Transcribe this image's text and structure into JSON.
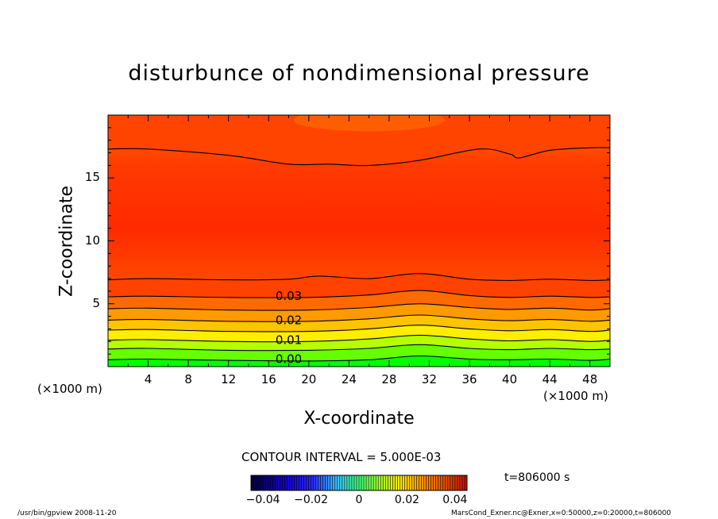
{
  "chart_data": {
    "type": "contour",
    "title": "disturbunce of nondimensional pressure",
    "xlabel": "X-coordinate",
    "ylabel": "Z-coordinate",
    "x_unit_left": "(×1000 m)",
    "x_unit_right": "(×1000 m)",
    "xlim": [
      0,
      50
    ],
    "ylim": [
      0,
      20
    ],
    "x_ticks": [
      4,
      8,
      12,
      16,
      20,
      24,
      28,
      32,
      36,
      40,
      44,
      48
    ],
    "x_tick_labels": [
      "4",
      "8",
      "12",
      "16",
      "20",
      "24",
      "28",
      "32",
      "36",
      "40",
      "44",
      "48"
    ],
    "y_ticks": [
      5,
      10,
      15
    ],
    "y_tick_labels": [
      "5",
      "10",
      "15"
    ],
    "contour_interval_text": "CONTOUR INTERVAL = 5.000E-03",
    "contour_level_labels": [
      {
        "text": "0.03",
        "value": 0.03,
        "z": 5.6
      },
      {
        "text": "0.02",
        "value": 0.02,
        "z": 3.7
      },
      {
        "text": "0.01",
        "value": 0.01,
        "z": 2.1
      },
      {
        "text": "0.00",
        "value": 0.0,
        "z": 0.6
      }
    ],
    "colorbar": {
      "range": [
        -0.045,
        0.045
      ],
      "ticks": [
        -0.04,
        -0.02,
        0,
        0.02,
        0.04
      ],
      "tick_labels": [
        "−0.04",
        "−0.02",
        "0",
        "0.02",
        "0.04"
      ]
    },
    "time_label": "t=806000  s",
    "contour_lines": [
      {
        "value": 0.0,
        "points": [
          [
            0,
            0.55
          ],
          [
            4,
            0.6
          ],
          [
            12,
            0.5
          ],
          [
            20,
            0.45
          ],
          [
            26,
            0.55
          ],
          [
            31,
            0.85
          ],
          [
            36,
            0.6
          ],
          [
            40,
            0.55
          ],
          [
            44,
            0.6
          ],
          [
            48,
            0.5
          ],
          [
            50,
            0.6
          ]
        ]
      },
      {
        "value": 0.005,
        "points": [
          [
            0,
            1.4
          ],
          [
            4,
            1.45
          ],
          [
            12,
            1.3
          ],
          [
            20,
            1.3
          ],
          [
            26,
            1.45
          ],
          [
            31,
            1.75
          ],
          [
            36,
            1.45
          ],
          [
            40,
            1.35
          ],
          [
            44,
            1.45
          ],
          [
            48,
            1.35
          ],
          [
            50,
            1.4
          ]
        ]
      },
      {
        "value": 0.01,
        "points": [
          [
            0,
            2.1
          ],
          [
            4,
            2.15
          ],
          [
            12,
            2.0
          ],
          [
            20,
            2.0
          ],
          [
            26,
            2.2
          ],
          [
            31,
            2.5
          ],
          [
            36,
            2.2
          ],
          [
            40,
            2.05
          ],
          [
            44,
            2.15
          ],
          [
            48,
            2.0
          ],
          [
            50,
            2.1
          ]
        ]
      },
      {
        "value": 0.015,
        "points": [
          [
            0,
            2.9
          ],
          [
            4,
            2.95
          ],
          [
            12,
            2.8
          ],
          [
            20,
            2.8
          ],
          [
            26,
            3.0
          ],
          [
            31,
            3.3
          ],
          [
            36,
            3.0
          ],
          [
            40,
            2.85
          ],
          [
            44,
            2.95
          ],
          [
            48,
            2.8
          ],
          [
            50,
            2.9
          ]
        ]
      },
      {
        "value": 0.02,
        "points": [
          [
            0,
            3.7
          ],
          [
            4,
            3.75
          ],
          [
            12,
            3.6
          ],
          [
            20,
            3.6
          ],
          [
            26,
            3.8
          ],
          [
            31,
            4.1
          ],
          [
            36,
            3.8
          ],
          [
            40,
            3.65
          ],
          [
            44,
            3.75
          ],
          [
            48,
            3.6
          ],
          [
            50,
            3.7
          ]
        ]
      },
      {
        "value": 0.025,
        "points": [
          [
            0,
            4.6
          ],
          [
            4,
            4.65
          ],
          [
            12,
            4.5
          ],
          [
            20,
            4.5
          ],
          [
            26,
            4.7
          ],
          [
            31,
            5.0
          ],
          [
            36,
            4.7
          ],
          [
            40,
            4.55
          ],
          [
            44,
            4.65
          ],
          [
            48,
            4.5
          ],
          [
            50,
            4.6
          ]
        ]
      },
      {
        "value": 0.03,
        "points": [
          [
            0,
            5.55
          ],
          [
            4,
            5.6
          ],
          [
            12,
            5.5
          ],
          [
            20,
            5.5
          ],
          [
            26,
            5.7
          ],
          [
            31,
            6.05
          ],
          [
            36,
            5.65
          ],
          [
            40,
            5.5
          ],
          [
            44,
            5.6
          ],
          [
            48,
            5.5
          ],
          [
            50,
            5.55
          ]
        ]
      },
      {
        "value": 0.035,
        "points": [
          [
            0,
            6.9
          ],
          [
            4,
            7.0
          ],
          [
            12,
            6.9
          ],
          [
            18,
            6.95
          ],
          [
            21,
            7.2
          ],
          [
            26,
            7.0
          ],
          [
            31,
            7.4
          ],
          [
            36,
            6.95
          ],
          [
            40,
            6.85
          ],
          [
            44,
            6.95
          ],
          [
            48,
            6.85
          ],
          [
            50,
            6.9
          ]
        ]
      },
      {
        "value": 0.035,
        "points": [
          [
            0,
            17.3
          ],
          [
            4,
            17.3
          ],
          [
            12,
            16.8
          ],
          [
            18,
            16.1
          ],
          [
            22,
            16.1
          ],
          [
            26,
            16.0
          ],
          [
            31,
            16.4
          ],
          [
            37,
            17.3
          ],
          [
            40,
            16.9
          ],
          [
            41,
            16.6
          ],
          [
            44,
            17.2
          ],
          [
            48,
            17.4
          ],
          [
            50,
            17.4
          ]
        ]
      }
    ],
    "field_columns": [
      {
        "x": 0,
        "min_line_offset": 0
      },
      {
        "x": 31,
        "min_line_offset": 0.4
      },
      {
        "x": 50,
        "min_line_offset": 0
      }
    ]
  },
  "footer": {
    "left": "/usr/bin/gpview   2008-11-20",
    "right": "MarsCond_Exner.nc@Exner,x=0:50000,z=0:20000,t=806000"
  }
}
